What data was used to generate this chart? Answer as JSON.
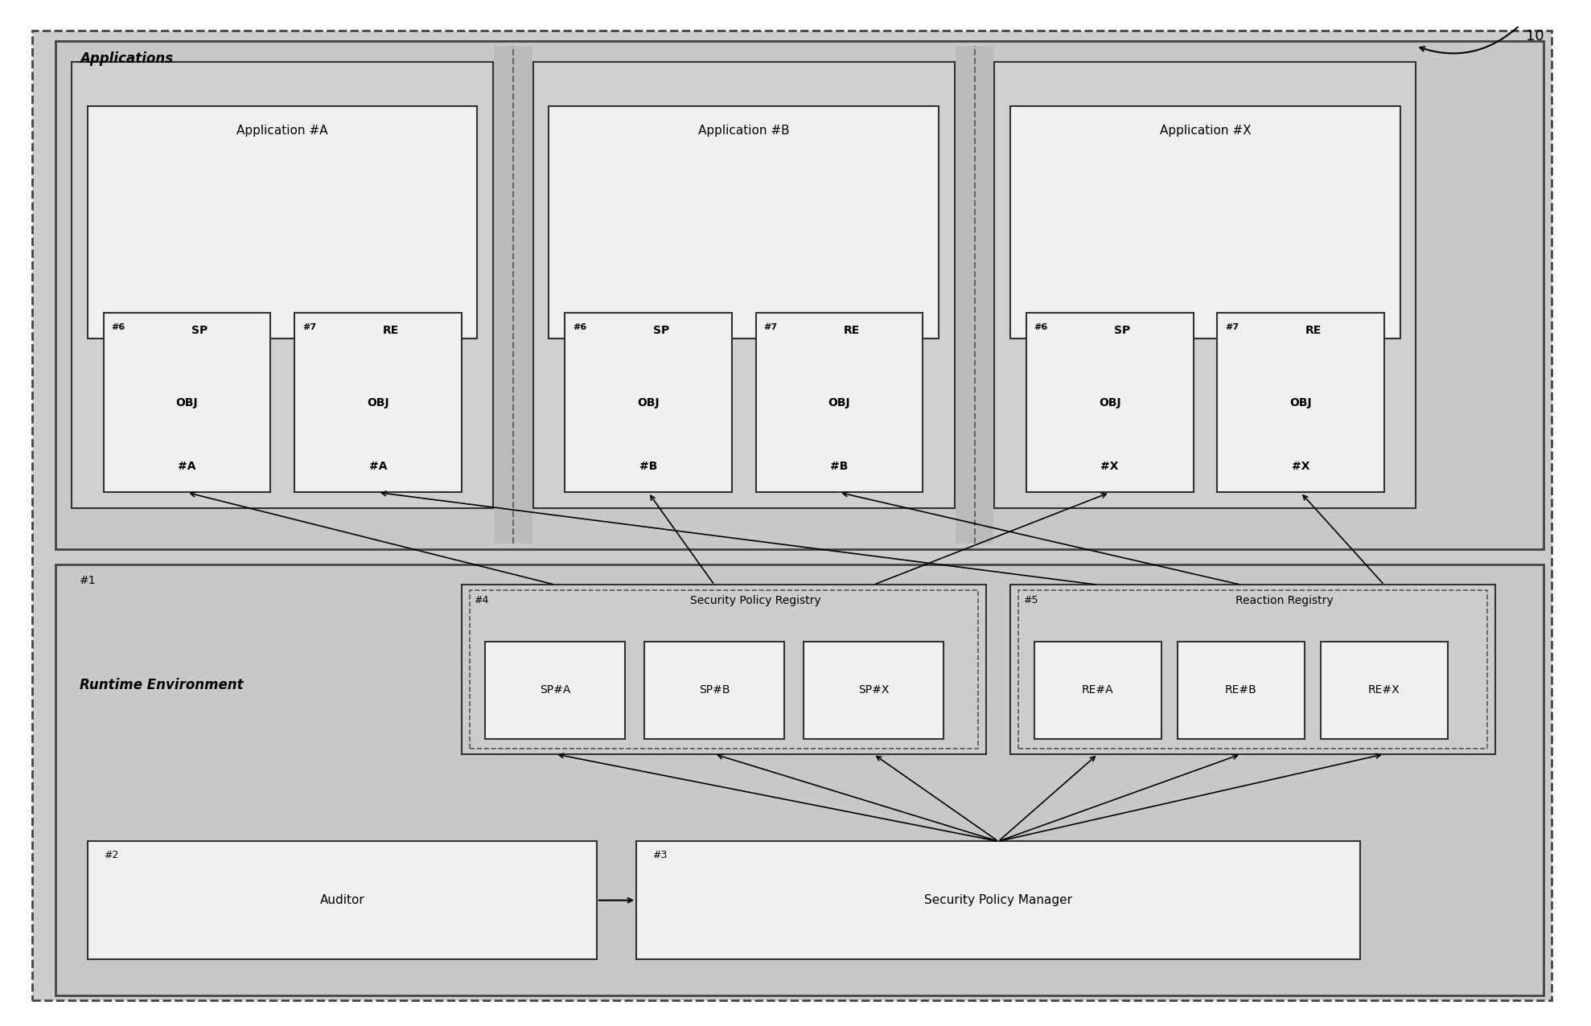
{
  "fig_width": 19.78,
  "fig_height": 12.76,
  "bg_color": "#ffffff",
  "outer_fill": "#cccccc",
  "apps_fill": "#c8c8c8",
  "runtime_fill": "#c8c8c8",
  "app_panel_fill": "#d8d8d8",
  "app_box_fill": "#f0f0f0",
  "obj_box_fill": "#f0f0f0",
  "reg_fill": "#c8c8c8",
  "reg_item_fill": "#f0f0f0",
  "bottom_box_fill": "#f0f0f0",
  "label_10": "10",
  "apps_label": "Applications",
  "runtime_label": "Runtime Environment",
  "runtime_num": "#1",
  "app_panels": [
    {
      "label": "Application #A",
      "sp_label": "#6 SP\nOBJ\n#A",
      "re_label": "#7 RE\nOBJ\n#A",
      "sp_num": "#6",
      "re_num": "#7",
      "sp_text": [
        "SP",
        "OBJ",
        "#A"
      ],
      "re_text": [
        "RE",
        "OBJ",
        "#A"
      ]
    },
    {
      "label": "Application #B",
      "sp_label": "#6 SP\nOBJ\n#B",
      "re_label": "#7 RE\nOBJ\n#B",
      "sp_num": "#6",
      "re_num": "#7",
      "sp_text": [
        "SP",
        "OBJ",
        "#B"
      ],
      "re_text": [
        "RE",
        "OBJ",
        "#B"
      ]
    },
    {
      "label": "Application #X",
      "sp_label": "#6 SP\nOBJ\n#X",
      "re_label": "#7 RE\nOBJ\n#X",
      "sp_num": "#6",
      "re_num": "#7",
      "sp_text": [
        "SP",
        "OBJ",
        "#X"
      ],
      "re_text": [
        "RE",
        "OBJ",
        "#X"
      ]
    }
  ],
  "spr_label": "Security Policy Registry",
  "spr_num": "#4",
  "rr_label": "Reaction Registry",
  "rr_num": "#5",
  "sp_items": [
    "SP#A",
    "SP#B",
    "SP#X"
  ],
  "re_items": [
    "RE#A",
    "RE#B",
    "RE#X"
  ],
  "auditor_label": "Auditor",
  "auditor_num": "#2",
  "spm_label": "Security Policy Manager",
  "spm_num": "#3"
}
